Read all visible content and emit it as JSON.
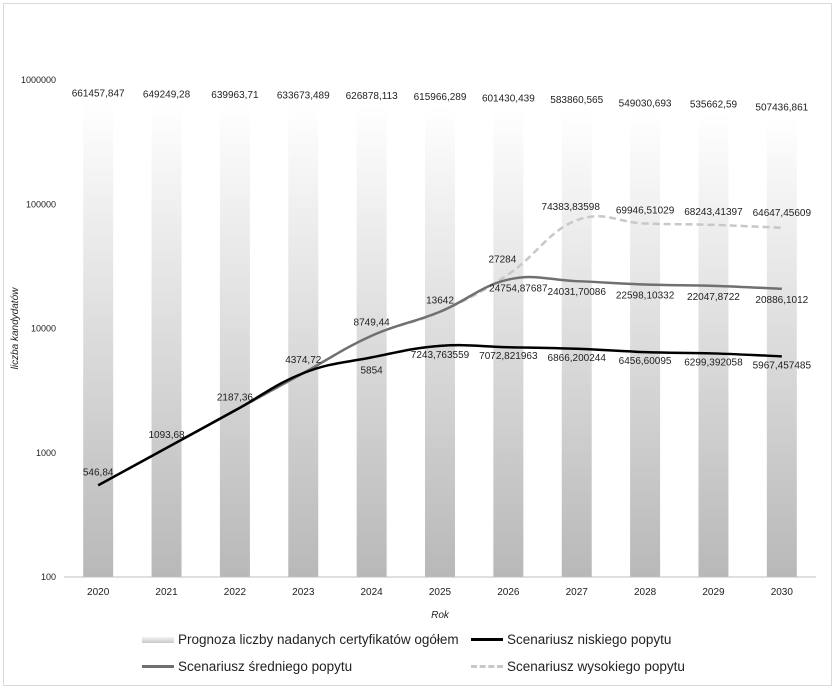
{
  "chart_data": {
    "type": "bar+line",
    "title": "",
    "xlabel": "Rok",
    "ylabel": "liczba kandydatów",
    "yscale": "log",
    "ylim": [
      100,
      1000000
    ],
    "ytick_labels": [
      "100",
      "1000",
      "10000",
      "100000",
      "1000000"
    ],
    "categories": [
      "2020",
      "2021",
      "2022",
      "2023",
      "2024",
      "2025",
      "2026",
      "2027",
      "2028",
      "2029",
      "2030"
    ],
    "bar_series": {
      "name": "Prognoza liczby nadanych certyfikatów ogółem",
      "values": [
        661457.847,
        649249.28,
        639963.71,
        633673.489,
        626878.113,
        615966.289,
        601430.439,
        583860.565,
        549030.693,
        535662.59,
        507436.861
      ],
      "labels": [
        "661457,847",
        "649249,28",
        "639963,71",
        "633673,489",
        "626878,113",
        "615966,289",
        "601430,439",
        "583860,565",
        "549030,693",
        "535662,59",
        "507436,861"
      ]
    },
    "line_series": [
      {
        "name": "Scenariusz niskiego popytu",
        "color": "#000000",
        "style": "solid",
        "values": [
          546.84,
          1093.68,
          2187.36,
          4374.72,
          5854,
          7243.763559,
          7072.821963,
          6866.200244,
          6456.60095,
          6299.392058,
          5967.457485
        ],
        "labels": [
          "",
          "",
          "",
          "",
          "5854",
          "7243,763559",
          "7072,821963",
          "6866,200244",
          "6456,60095",
          "6299,392058",
          "5967,457485"
        ]
      },
      {
        "name": "Scenariusz średniego popytu",
        "color": "#707070",
        "style": "solid",
        "values": [
          546.84,
          1093.68,
          2187.36,
          4374.72,
          8749.44,
          13642,
          24754.87687,
          24031.70086,
          22598.10332,
          22047.8722,
          20886.1012
        ],
        "labels": [
          "",
          "",
          "",
          "",
          "",
          "",
          "24754,87687",
          "24031,70086",
          "22598,10332",
          "22047,8722",
          "20886,1012"
        ]
      },
      {
        "name": "Scenariusz wysokiego popytu",
        "color": "#c8c8c8",
        "style": "dashed",
        "values": [
          546.84,
          1093.68,
          2187.36,
          4374.72,
          8749.44,
          13642,
          27284,
          74383.83598,
          69946.51029,
          68243.41397,
          64647.45609
        ],
        "labels": [
          "546,84",
          "1093,68",
          "2187,36",
          "4374,72",
          "8749,44",
          "13642",
          "27284",
          "74383,83598",
          "69946,51029",
          "68243,41397",
          "64647,45609"
        ]
      }
    ],
    "legend_position": "bottom",
    "grid": false
  }
}
